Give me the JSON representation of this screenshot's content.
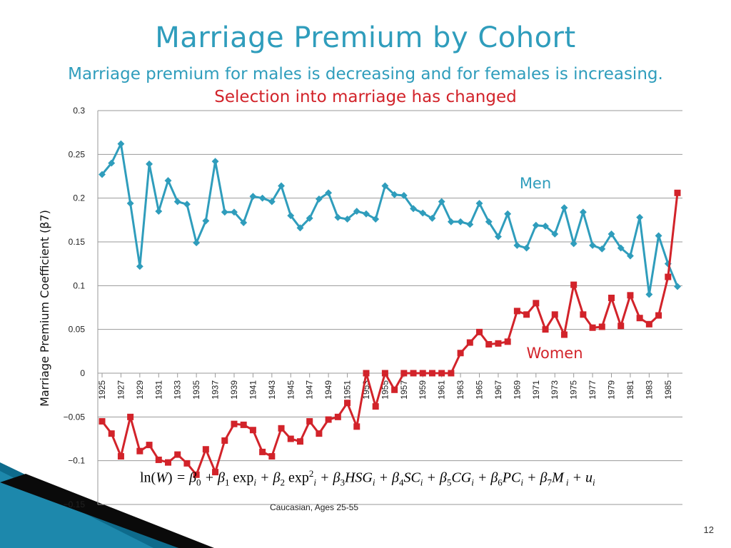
{
  "slide": {
    "title": "Marriage Premium by Cohort",
    "subtitle_blue": "Marriage premium for males is decreasing and for females is increasing. ",
    "subtitle_red": "Selection into marriage has changed",
    "footnote": "Caucasian, Ages 25-55",
    "page_number": "12"
  },
  "formula": {
    "lhs": "ln(W) = ",
    "rhs": "β0 + β1 expi + β2 exp2i + β3HSGi + β4SCi + β5CGi + β6PCi + β7M i + ui"
  },
  "colors": {
    "men": "#2f9dbc",
    "women": "#d2232a",
    "title": "#2f9dbc",
    "accent_red": "#d2232a"
  },
  "chart_data": {
    "type": "line",
    "title": "",
    "xlabel": "",
    "ylabel": "Marriage Premium Coefficient (β7)",
    "ylim": [
      -0.15,
      0.3
    ],
    "yticks": [
      0.3,
      0.25,
      0.2,
      0.15,
      0.1,
      0.05,
      0,
      -0.05,
      -0.1,
      -0.15
    ],
    "ytick_labels": [
      "0.3",
      "0.25",
      "0.2",
      "0.15",
      "0.1",
      "0.05",
      "0",
      "−0.05",
      "−0.1",
      "−0.15"
    ],
    "grid": true,
    "x": [
      1925,
      1926,
      1927,
      1928,
      1929,
      1930,
      1931,
      1932,
      1933,
      1934,
      1935,
      1936,
      1937,
      1938,
      1939,
      1940,
      1941,
      1942,
      1943,
      1944,
      1945,
      1946,
      1947,
      1948,
      1949,
      1950,
      1951,
      1952,
      1953,
      1954,
      1955,
      1956,
      1957,
      1958,
      1959,
      1960,
      1961,
      1962,
      1963,
      1964,
      1965,
      1966,
      1967,
      1968,
      1969,
      1970,
      1971,
      1972,
      1973,
      1974,
      1975,
      1976,
      1977,
      1978,
      1979,
      1980,
      1981,
      1982,
      1983,
      1984,
      1985,
      1986
    ],
    "xtick_labels": [
      "1925",
      "1927",
      "1929",
      "1931",
      "1933",
      "1935",
      "1937",
      "1939",
      "1941",
      "1943",
      "1945",
      "1947",
      "1949",
      "1951",
      "1953",
      "1955",
      "1957",
      "1959",
      "1961",
      "1963",
      "1965",
      "1967",
      "1969",
      "1971",
      "1973",
      "1975",
      "1977",
      "1979",
      "1981",
      "1983",
      "1985"
    ],
    "series": [
      {
        "name": "Men",
        "label": "Men",
        "values": [
          0.227,
          0.24,
          0.262,
          0.194,
          0.122,
          0.239,
          0.185,
          0.22,
          0.196,
          0.193,
          0.149,
          0.174,
          0.242,
          0.184,
          0.184,
          0.172,
          0.202,
          0.2,
          0.196,
          0.214,
          0.18,
          0.166,
          0.177,
          0.199,
          0.206,
          0.178,
          0.176,
          0.185,
          0.182,
          0.176,
          0.214,
          0.204,
          0.203,
          0.188,
          0.183,
          0.177,
          0.196,
          0.173,
          0.173,
          0.17,
          0.194,
          0.173,
          0.156,
          0.182,
          0.146,
          0.143,
          0.169,
          0.168,
          0.159,
          0.189,
          0.148,
          0.184,
          0.146,
          0.142,
          0.159,
          0.143,
          0.134,
          0.178,
          0.09,
          0.157,
          0.125,
          0.099
        ]
      },
      {
        "name": "Women",
        "label": "Women",
        "values": [
          -0.055,
          -0.069,
          -0.095,
          -0.05,
          -0.089,
          -0.082,
          -0.099,
          -0.102,
          -0.093,
          -0.103,
          -0.116,
          -0.087,
          -0.113,
          -0.077,
          -0.058,
          -0.059,
          -0.065,
          -0.09,
          -0.095,
          -0.063,
          -0.075,
          -0.078,
          -0.055,
          -0.069,
          -0.053,
          -0.05,
          -0.034,
          -0.061,
          0.0,
          -0.038,
          0.0,
          -0.019,
          0.0,
          0.0,
          0.0,
          0.0,
          0.0,
          0.0,
          0.023,
          0.035,
          0.047,
          0.033,
          0.034,
          0.036,
          0.071,
          0.067,
          0.08,
          0.05,
          0.067,
          0.044,
          0.101,
          0.067,
          0.052,
          0.053,
          0.086,
          0.054,
          0.089,
          0.063,
          0.056,
          0.066,
          0.11,
          0.206
        ]
      }
    ]
  }
}
